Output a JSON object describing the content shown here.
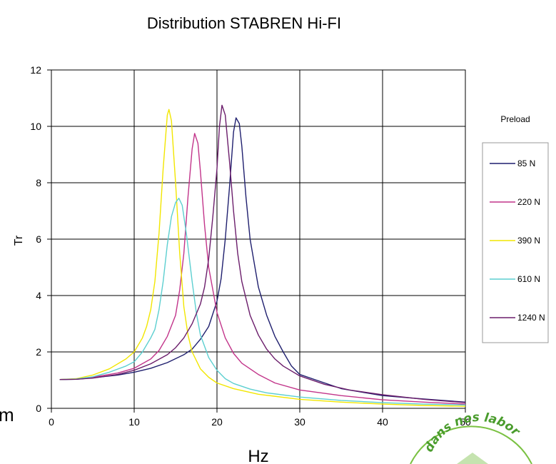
{
  "chart_data": {
    "type": "line",
    "title": "Distribution STABREN Hi-FI",
    "xlabel": "Hz",
    "ylabel": "Tr",
    "xlim": [
      0,
      50
    ],
    "ylim": [
      0,
      12
    ],
    "xticks": [
      0,
      10,
      20,
      30,
      40,
      50
    ],
    "yticks": [
      0,
      2,
      4,
      6,
      8,
      10,
      12
    ],
    "grid": true,
    "legend_title": "Preload",
    "legend_position": "right",
    "series": [
      {
        "name": "85 N",
        "color": "#1f1f6e",
        "points": [
          [
            1,
            1.02
          ],
          [
            3,
            1.03
          ],
          [
            5,
            1.08
          ],
          [
            8,
            1.18
          ],
          [
            10,
            1.28
          ],
          [
            12,
            1.42
          ],
          [
            14,
            1.62
          ],
          [
            16,
            1.9
          ],
          [
            17,
            2.1
          ],
          [
            18,
            2.45
          ],
          [
            19,
            2.9
          ],
          [
            20,
            3.8
          ],
          [
            20.5,
            4.6
          ],
          [
            21,
            6.0
          ],
          [
            21.5,
            7.8
          ],
          [
            22,
            9.8
          ],
          [
            22.3,
            10.3
          ],
          [
            22.7,
            10.1
          ],
          [
            23,
            9.3
          ],
          [
            23.5,
            7.5
          ],
          [
            24,
            6.0
          ],
          [
            25,
            4.3
          ],
          [
            26,
            3.3
          ],
          [
            27,
            2.55
          ],
          [
            28,
            2.0
          ],
          [
            29,
            1.5
          ],
          [
            30,
            1.2
          ],
          [
            32,
            1.0
          ],
          [
            35,
            0.7
          ],
          [
            38,
            0.55
          ],
          [
            40,
            0.45
          ],
          [
            45,
            0.33
          ],
          [
            50,
            0.22
          ]
        ]
      },
      {
        "name": "220 N",
        "color": "#c2348a",
        "points": [
          [
            1,
            1.02
          ],
          [
            3,
            1.04
          ],
          [
            5,
            1.1
          ],
          [
            8,
            1.25
          ],
          [
            10,
            1.42
          ],
          [
            12,
            1.75
          ],
          [
            13,
            2.05
          ],
          [
            14,
            2.55
          ],
          [
            15,
            3.3
          ],
          [
            15.5,
            4.2
          ],
          [
            16,
            5.5
          ],
          [
            16.5,
            7.5
          ],
          [
            17,
            9.2
          ],
          [
            17.3,
            9.75
          ],
          [
            17.7,
            9.4
          ],
          [
            18,
            8.4
          ],
          [
            18.5,
            6.5
          ],
          [
            19,
            5.0
          ],
          [
            20,
            3.4
          ],
          [
            21,
            2.5
          ],
          [
            22,
            1.95
          ],
          [
            23,
            1.6
          ],
          [
            25,
            1.2
          ],
          [
            27,
            0.9
          ],
          [
            30,
            0.65
          ],
          [
            35,
            0.45
          ],
          [
            40,
            0.3
          ],
          [
            45,
            0.22
          ],
          [
            50,
            0.15
          ]
        ]
      },
      {
        "name": "390 N",
        "color": "#f2e600",
        "points": [
          [
            1,
            1.02
          ],
          [
            3,
            1.05
          ],
          [
            5,
            1.18
          ],
          [
            7,
            1.4
          ],
          [
            9,
            1.75
          ],
          [
            10,
            2.0
          ],
          [
            11,
            2.5
          ],
          [
            11.5,
            2.9
          ],
          [
            12,
            3.5
          ],
          [
            12.5,
            4.5
          ],
          [
            13,
            6.2
          ],
          [
            13.5,
            8.5
          ],
          [
            14,
            10.4
          ],
          [
            14.2,
            10.6
          ],
          [
            14.5,
            10.2
          ],
          [
            15,
            8.0
          ],
          [
            15.5,
            5.5
          ],
          [
            16,
            3.6
          ],
          [
            16.5,
            2.6
          ],
          [
            17,
            2.0
          ],
          [
            18,
            1.4
          ],
          [
            19,
            1.1
          ],
          [
            20,
            0.9
          ],
          [
            22,
            0.7
          ],
          [
            25,
            0.5
          ],
          [
            30,
            0.32
          ],
          [
            35,
            0.22
          ],
          [
            40,
            0.15
          ],
          [
            45,
            0.1
          ],
          [
            50,
            0.07
          ]
        ]
      },
      {
        "name": "610 N",
        "color": "#5ccfd0",
        "points": [
          [
            1,
            1.02
          ],
          [
            3,
            1.04
          ],
          [
            5,
            1.12
          ],
          [
            7,
            1.28
          ],
          [
            9,
            1.5
          ],
          [
            10,
            1.65
          ],
          [
            11,
            2.0
          ],
          [
            12,
            2.5
          ],
          [
            12.5,
            2.8
          ],
          [
            13,
            3.5
          ],
          [
            13.5,
            4.5
          ],
          [
            14,
            5.8
          ],
          [
            14.5,
            6.8
          ],
          [
            15,
            7.3
          ],
          [
            15.4,
            7.45
          ],
          [
            15.8,
            7.2
          ],
          [
            16.3,
            6.2
          ],
          [
            17,
            4.5
          ],
          [
            17.5,
            3.4
          ],
          [
            18,
            2.6
          ],
          [
            19,
            1.8
          ],
          [
            20,
            1.35
          ],
          [
            21,
            1.05
          ],
          [
            22,
            0.88
          ],
          [
            24,
            0.68
          ],
          [
            26,
            0.55
          ],
          [
            30,
            0.4
          ],
          [
            35,
            0.28
          ],
          [
            40,
            0.2
          ],
          [
            45,
            0.15
          ],
          [
            50,
            0.12
          ]
        ]
      },
      {
        "name": "1240 N",
        "color": "#6b1d6b",
        "points": [
          [
            1,
            1.02
          ],
          [
            3,
            1.03
          ],
          [
            5,
            1.07
          ],
          [
            8,
            1.2
          ],
          [
            10,
            1.35
          ],
          [
            12,
            1.58
          ],
          [
            14,
            1.9
          ],
          [
            15,
            2.15
          ],
          [
            16,
            2.5
          ],
          [
            17,
            3.0
          ],
          [
            18,
            3.7
          ],
          [
            18.5,
            4.3
          ],
          [
            19,
            5.3
          ],
          [
            19.5,
            6.8
          ],
          [
            20,
            8.5
          ],
          [
            20.3,
            10.0
          ],
          [
            20.6,
            10.75
          ],
          [
            21,
            10.4
          ],
          [
            21.5,
            8.8
          ],
          [
            22,
            7.0
          ],
          [
            22.5,
            5.5
          ],
          [
            23,
            4.5
          ],
          [
            24,
            3.3
          ],
          [
            25,
            2.6
          ],
          [
            26,
            2.1
          ],
          [
            27,
            1.75
          ],
          [
            28,
            1.5
          ],
          [
            30,
            1.15
          ],
          [
            33,
            0.85
          ],
          [
            36,
            0.65
          ],
          [
            40,
            0.48
          ],
          [
            45,
            0.32
          ],
          [
            50,
            0.2
          ]
        ]
      }
    ]
  },
  "stamp": {
    "text": "dans nos labor"
  },
  "side_fragment": "m"
}
